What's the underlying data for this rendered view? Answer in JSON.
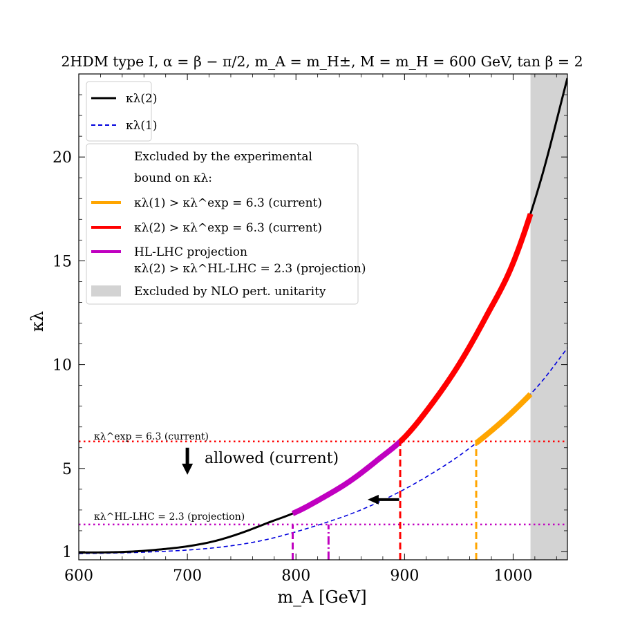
{
  "chart_data": {
    "type": "line",
    "title": "2HDM type I, α = β − π/2, m_A = m_H±, M = m_H = 600 GeV, tan β = 2",
    "xlabel": "m_A [GeV]",
    "ylabel": "κλ",
    "xlim": [
      600,
      1050
    ],
    "ylim": [
      0.6,
      24
    ],
    "xticks": [
      600,
      700,
      800,
      900,
      1000
    ],
    "yticks": [
      1,
      5,
      10,
      15,
      20
    ],
    "series": [
      {
        "name": "κλ(2)",
        "color": "#000000",
        "style": "solid",
        "x": [
          600,
          625,
          650,
          675,
          700,
          725,
          750,
          775,
          800,
          825,
          850,
          875,
          900,
          925,
          950,
          975,
          1000,
          1025,
          1050
        ],
        "y": [
          0.95,
          0.96,
          1.0,
          1.1,
          1.25,
          1.5,
          1.9,
          2.4,
          2.9,
          3.6,
          4.4,
          5.4,
          6.5,
          8.1,
          10.0,
          12.3,
          14.9,
          18.8,
          23.8
        ]
      },
      {
        "name": "κλ(1)",
        "color": "#0000dd",
        "style": "dashed",
        "x": [
          600,
          625,
          650,
          675,
          700,
          725,
          750,
          775,
          800,
          825,
          850,
          875,
          900,
          925,
          950,
          975,
          1000,
          1025,
          1050
        ],
        "y": [
          0.9,
          0.92,
          0.95,
          1.0,
          1.07,
          1.18,
          1.35,
          1.6,
          1.95,
          2.35,
          2.8,
          3.35,
          4.0,
          4.75,
          5.6,
          6.6,
          7.75,
          9.1,
          10.8
        ]
      }
    ],
    "highlights": [
      {
        "name": "κλ(2) > κλ^HL-LHC = 2.3 (projection)",
        "color": "#c000c0",
        "on_series": 0,
        "x_range": [
          797,
          896
        ]
      },
      {
        "name": "κλ(2) > κλ^exp = 6.3 (current)",
        "color": "#ff0000",
        "on_series": 0,
        "x_range": [
          896,
          1016
        ]
      },
      {
        "name": "κλ(1) > κλ^exp = 6.3 (current)",
        "color": "#ffa500",
        "on_series": 1,
        "x_range": [
          966,
          1016
        ]
      }
    ],
    "shaded_region": {
      "label": "Excluded by NLO pert. unitarity",
      "x_range": [
        1016,
        1050
      ],
      "color": "#d3d3d3"
    },
    "hlines": [
      {
        "y": 6.3,
        "color": "#ff0000",
        "style": "dotted",
        "label": "κλ^exp = 6.3 (current)"
      },
      {
        "y": 2.3,
        "color": "#c000c0",
        "style": "dotted",
        "label": "κλ^HL-LHC = 2.3 (projection)"
      }
    ],
    "vlines": [
      {
        "x": 797,
        "ymax": 2.3,
        "color": "#c000c0",
        "style": "dashed"
      },
      {
        "x": 830,
        "ymax": 2.3,
        "color": "#c000c0",
        "style": "dashdot"
      },
      {
        "x": 896,
        "ymax": 6.3,
        "color": "#ff0000",
        "style": "dashed"
      },
      {
        "x": 966,
        "ymax": 6.3,
        "color": "#ffa500",
        "style": "dashed"
      }
    ],
    "arrows": [
      {
        "label": "allowed (current)",
        "x": 700,
        "from_y": 6.0,
        "to_y": 4.7,
        "direction": "down"
      },
      {
        "x_from": 895,
        "x_to": 866,
        "y": 3.5,
        "direction": "left"
      }
    ],
    "legend": {
      "placement": "top-left",
      "entries": [
        {
          "label": "κλ(2)",
          "color": "#000000",
          "style": "solid"
        },
        {
          "label": "κλ(1)",
          "color": "#0000dd",
          "style": "dashed"
        }
      ],
      "box2_header": [
        "Excluded by the experimental",
        "bound on κλ:"
      ],
      "box2_entries": [
        {
          "label": "κλ(1) > κλ^exp = 6.3 (current)",
          "color": "#ffa500"
        },
        {
          "label": "κλ(2) > κλ^exp = 6.3 (current)",
          "color": "#ff0000"
        },
        {
          "label": "HL-LHC projection",
          "label2": "κλ(2) > κλ^HL-LHC = 2.3 (projection)",
          "color": "#c000c0"
        },
        {
          "label": "Excluded by NLO pert. unitarity",
          "color": "#d3d3d3",
          "patch": true
        }
      ]
    }
  }
}
